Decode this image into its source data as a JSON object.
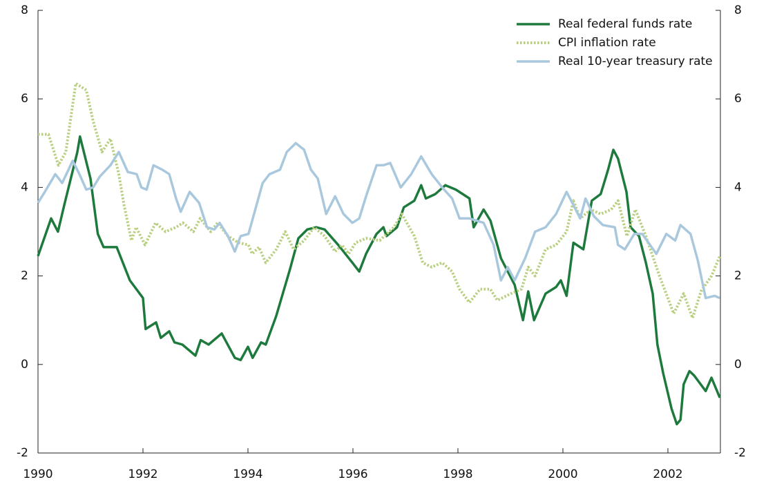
{
  "chart_data": {
    "type": "line",
    "xlim": [
      1990,
      2003
    ],
    "xticks": [
      1990,
      1992,
      1994,
      1996,
      1998,
      2000,
      2002
    ],
    "ylim": [
      -2,
      8
    ],
    "yticks": [
      -2,
      0,
      2,
      4,
      6,
      8
    ],
    "y2lim": [
      -2,
      8
    ],
    "y2ticks": [
      -2,
      0,
      2,
      4,
      6,
      8
    ],
    "legend": "upper right",
    "series": [
      {
        "name": "Real federal funds rate",
        "color": "#1e7a3c",
        "style": "solid",
        "x": [
          1990,
          1990.25,
          1990.38,
          1990.5,
          1990.75,
          1990.8,
          1991,
          1991.14,
          1991.25,
          1991.5,
          1991.75,
          1992,
          1992.05,
          1992.25,
          1992.34,
          1992.5,
          1992.6,
          1992.75,
          1993,
          1993.1,
          1993.25,
          1993.5,
          1993.75,
          1993.86,
          1994,
          1994.09,
          1994.25,
          1994.34,
          1994.54,
          1994.8,
          1994.96,
          1995.13,
          1995.3,
          1995.46,
          1995.72,
          1995.99,
          1996.12,
          1996.25,
          1996.45,
          1996.58,
          1996.64,
          1996.84,
          1996.97,
          1997.17,
          1997.3,
          1997.39,
          1997.57,
          1997.76,
          1997.96,
          1998.22,
          1998.3,
          1998.49,
          1998.62,
          1998.82,
          1999.08,
          1999.24,
          1999.34,
          1999.45,
          1999.67,
          1999.87,
          1999.96,
          2000.07,
          2000.2,
          2000.39,
          2000.55,
          2000.72,
          2000.86,
          2000.96,
          2001.05,
          2001.21,
          2001.29,
          2001.45,
          2001.58,
          2001.71,
          2001.8,
          2001.91,
          2002.07,
          2002.17,
          2002.24,
          2002.3,
          2002.41,
          2002.5,
          2002.72,
          2002.83,
          2002.99
        ],
        "values": [
          2.45,
          3.3,
          3.0,
          3.6,
          4.8,
          5.15,
          4.2,
          2.95,
          2.65,
          2.65,
          1.9,
          1.5,
          0.8,
          0.95,
          0.6,
          0.75,
          0.5,
          0.45,
          0.2,
          0.55,
          0.45,
          0.7,
          0.15,
          0.1,
          0.4,
          0.15,
          0.5,
          0.45,
          1.1,
          2.15,
          2.85,
          3.05,
          3.1,
          3.05,
          2.7,
          2.3,
          2.1,
          2.5,
          2.95,
          3.1,
          2.9,
          3.1,
          3.55,
          3.7,
          4.05,
          3.75,
          3.85,
          4.05,
          3.95,
          3.75,
          3.1,
          3.5,
          3.25,
          2.4,
          1.8,
          1.0,
          1.65,
          1.0,
          1.6,
          1.75,
          1.9,
          1.55,
          2.75,
          2.6,
          3.7,
          3.85,
          4.4,
          4.85,
          4.65,
          3.9,
          3.1,
          2.9,
          2.3,
          1.6,
          0.45,
          -0.2,
          -1.0,
          -1.35,
          -1.25,
          -0.45,
          -0.15,
          -0.25,
          -0.6,
          -0.3,
          -0.75
        ]
      },
      {
        "name": "CPI inflation rate",
        "color": "#b8cf80",
        "style": "dotted",
        "x": [
          1990,
          1990.2,
          1990.39,
          1990.53,
          1990.72,
          1990.92,
          1991.05,
          1991.22,
          1991.38,
          1991.54,
          1991.64,
          1991.78,
          1991.87,
          1992.04,
          1992.24,
          1992.43,
          1992.63,
          1992.76,
          1992.96,
          1993.09,
          1993.29,
          1993.42,
          1993.62,
          1993.82,
          1994.01,
          1994.08,
          1994.21,
          1994.34,
          1994.54,
          1994.71,
          1994.87,
          1995.07,
          1995.26,
          1995.46,
          1995.66,
          1995.79,
          1995.92,
          1996.05,
          1996.25,
          1996.51,
          1996.78,
          1996.93,
          1997.17,
          1997.33,
          1997.5,
          1997.7,
          1997.89,
          1998.03,
          1998.22,
          1998.42,
          1998.62,
          1998.75,
          1999.01,
          1999.21,
          1999.34,
          1999.47,
          1999.67,
          1999.87,
          2000.07,
          2000.2,
          2000.33,
          2000.53,
          2000.72,
          2000.92,
          2001.05,
          2001.22,
          2001.38,
          2001.58,
          2001.84,
          2002.11,
          2002.3,
          2002.47,
          2002.63,
          2002.83,
          2002.99
        ],
        "values": [
          5.2,
          5.2,
          4.5,
          4.8,
          6.35,
          6.2,
          5.5,
          4.8,
          5.1,
          4.3,
          3.6,
          2.8,
          3.1,
          2.7,
          3.2,
          3.0,
          3.1,
          3.2,
          3.0,
          3.3,
          3.0,
          3.2,
          2.9,
          2.75,
          2.7,
          2.5,
          2.65,
          2.3,
          2.6,
          3.0,
          2.6,
          2.8,
          3.1,
          2.9,
          2.55,
          2.7,
          2.5,
          2.75,
          2.85,
          2.8,
          3.1,
          3.4,
          2.9,
          2.3,
          2.2,
          2.3,
          2.1,
          1.7,
          1.4,
          1.7,
          1.7,
          1.45,
          1.6,
          1.7,
          2.2,
          2.0,
          2.6,
          2.7,
          3.0,
          3.7,
          3.3,
          3.5,
          3.4,
          3.5,
          3.7,
          2.9,
          3.5,
          2.9,
          2.0,
          1.15,
          1.6,
          1.05,
          1.65,
          2.0,
          2.45
        ]
      },
      {
        "name": "Real 10-year treasury rate",
        "color": "#a9c8de",
        "style": "solid",
        "x": [
          1990,
          1990.13,
          1990.33,
          1990.46,
          1990.66,
          1990.79,
          1990.92,
          1991.05,
          1991.18,
          1991.38,
          1991.54,
          1991.71,
          1991.88,
          1991.97,
          1992.07,
          1992.2,
          1992.37,
          1992.5,
          1992.63,
          1992.72,
          1992.89,
          1993.07,
          1993.22,
          1993.36,
          1993.46,
          1993.62,
          1993.75,
          1993.86,
          1994.01,
          1994.14,
          1994.28,
          1994.41,
          1994.61,
          1994.74,
          1994.91,
          1995.07,
          1995.2,
          1995.33,
          1995.49,
          1995.66,
          1995.82,
          1995.99,
          1996.12,
          1996.25,
          1996.45,
          1996.58,
          1996.71,
          1996.91,
          1997.11,
          1997.3,
          1997.5,
          1997.7,
          1997.89,
          1998.03,
          1998.22,
          1998.49,
          1998.68,
          1998.82,
          1998.95,
          1999.08,
          1999.28,
          1999.47,
          1999.67,
          1999.87,
          2000.07,
          2000.2,
          2000.33,
          2000.43,
          2000.59,
          2000.76,
          2000.99,
          2001.05,
          2001.18,
          2001.36,
          2001.51,
          2001.78,
          2001.97,
          2002.14,
          2002.24,
          2002.43,
          2002.57,
          2002.72,
          2002.89,
          2002.99
        ],
        "values": [
          3.65,
          3.9,
          4.3,
          4.1,
          4.6,
          4.3,
          3.95,
          4.0,
          4.25,
          4.5,
          4.8,
          4.35,
          4.3,
          4.0,
          3.95,
          4.5,
          4.4,
          4.3,
          3.75,
          3.45,
          3.9,
          3.65,
          3.1,
          3.05,
          3.2,
          2.9,
          2.55,
          2.9,
          2.95,
          3.5,
          4.1,
          4.3,
          4.4,
          4.8,
          5.0,
          4.85,
          4.4,
          4.2,
          3.4,
          3.8,
          3.4,
          3.2,
          3.3,
          3.8,
          4.5,
          4.5,
          4.55,
          4.0,
          4.3,
          4.7,
          4.3,
          4.0,
          3.75,
          3.3,
          3.3,
          3.2,
          2.7,
          1.9,
          2.2,
          1.9,
          2.4,
          3.0,
          3.1,
          3.4,
          3.9,
          3.6,
          3.3,
          3.75,
          3.35,
          3.15,
          3.1,
          2.7,
          2.6,
          2.95,
          2.95,
          2.5,
          2.95,
          2.8,
          3.15,
          2.95,
          2.35,
          1.5,
          1.55,
          1.5
        ]
      }
    ]
  }
}
